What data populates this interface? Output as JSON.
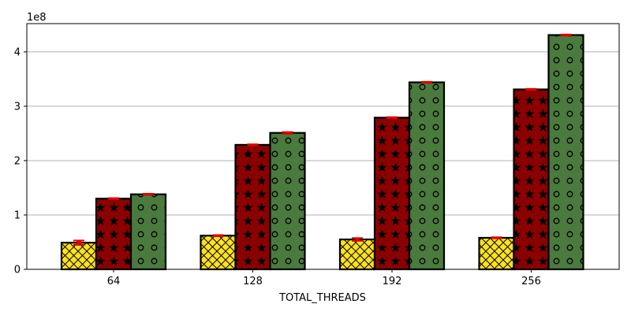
{
  "chart_data": {
    "type": "bar",
    "title": "",
    "xlabel": "TOTAL_THREADS",
    "ylabel": "",
    "y_offset_label": "1e8",
    "y_scale": 100000000,
    "categories": [
      "64",
      "128",
      "192",
      "256"
    ],
    "ylim": [
      0,
      452000000
    ],
    "yticks": [
      0,
      100000000,
      200000000,
      300000000,
      400000000
    ],
    "ytick_labels": [
      "0",
      "1",
      "2",
      "3",
      "4"
    ],
    "grid": "horizontal",
    "legend": "none",
    "series": [
      {
        "color": "#ffe21a",
        "hatch": "cross",
        "values": [
          49000000,
          62000000,
          55000000,
          58000000
        ],
        "errors": [
          4000000,
          1000000,
          2500000,
          1000000
        ]
      },
      {
        "color": "#8b0000",
        "hatch": "star",
        "values": [
          130000000,
          229000000,
          279000000,
          331000000
        ],
        "errors": [
          1000000,
          1000000,
          1000000,
          1000000
        ]
      },
      {
        "color": "#4a7a3d",
        "hatch": "circle",
        "values": [
          138000000,
          251000000,
          344000000,
          431000000
        ],
        "errors": [
          1000000,
          1500000,
          1000000,
          1000000
        ]
      }
    ],
    "error_color": "#e00000"
  }
}
